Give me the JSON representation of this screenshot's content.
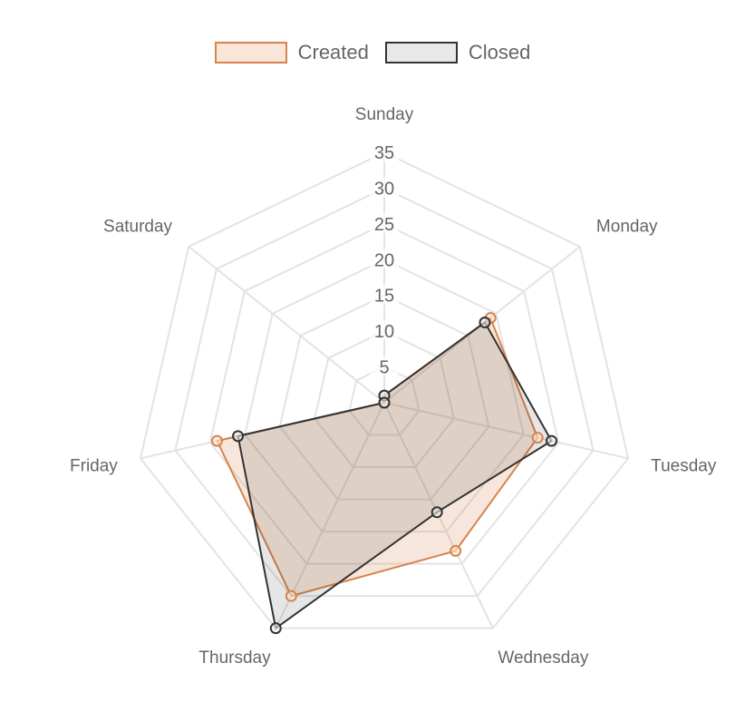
{
  "chart_data": {
    "type": "radar",
    "labels": [
      "Sunday",
      "Monday",
      "Tuesday",
      "Wednesday",
      "Thursday",
      "Friday",
      "Saturday"
    ],
    "scale": {
      "min": 0,
      "max": 35,
      "step": 5,
      "ticks": [
        "5",
        "10",
        "15",
        "20",
        "25",
        "30",
        "35"
      ]
    },
    "grid": true,
    "legend_position": "top",
    "series": [
      {
        "name": "Created",
        "values": [
          1,
          19,
          22,
          23,
          30,
          24,
          0
        ],
        "border_color": "#D7834B",
        "fill_color": "rgba(215,131,75,0.2)",
        "point_fill": "#F9E6D9"
      },
      {
        "name": "Closed",
        "values": [
          1,
          18,
          24,
          17,
          35,
          21,
          0
        ],
        "border_color": "#333333",
        "fill_color": "rgba(51,51,51,0.12)",
        "point_fill": "#E8E8E8"
      }
    ]
  }
}
